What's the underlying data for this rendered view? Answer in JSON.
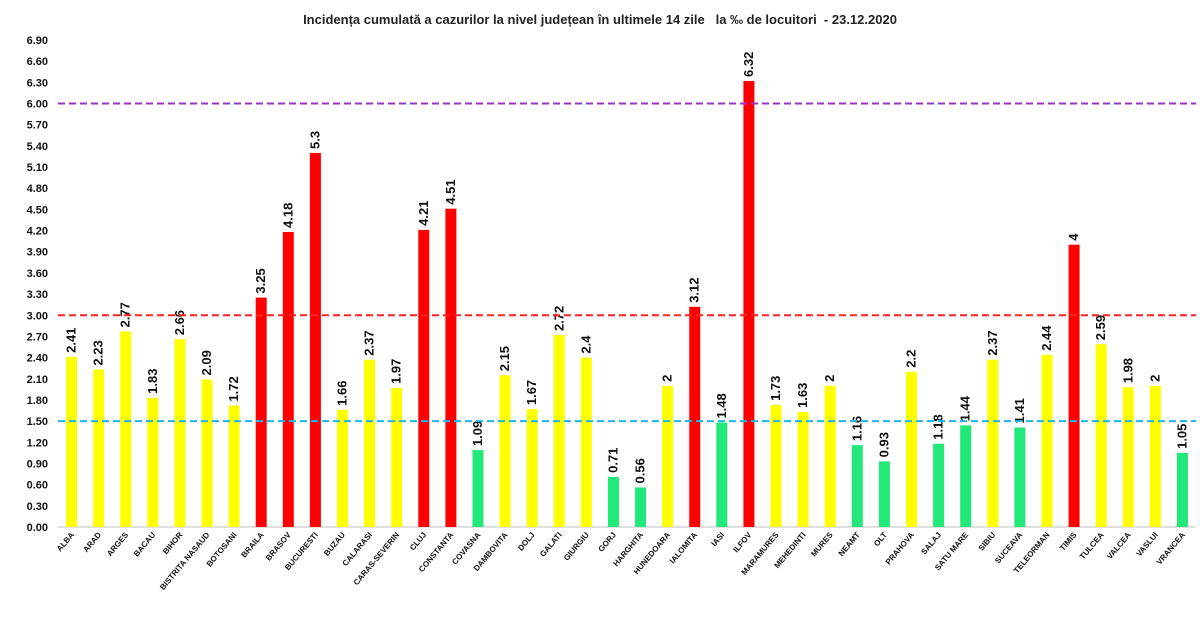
{
  "chart_data": {
    "type": "bar",
    "title": "Incidența cumulată a cazurilor la nivel județean în ultimele 14 zile   la ‰ de locuitori  - 23.12.2020",
    "categories": [
      "ALBA",
      "ARAD",
      "ARGES",
      "BACAU",
      "BIHOR",
      "BISTRITA NASAUD",
      "BOTOSANI",
      "BRAILA",
      "BRASOV",
      "BUCURESTI",
      "BUZAU",
      "CALARASI",
      "CARAS-SEVERIN",
      "CLUJ",
      "CONSTANTA",
      "COVASNA",
      "DAMBOVITA",
      "DOLJ",
      "GALATI",
      "GIURGIU",
      "GORJ",
      "HARGHITA",
      "HUNEDOARA",
      "IALOMITA",
      "IASI",
      "ILFOV",
      "MARAMURES",
      "MEHEDINTI",
      "MURES",
      "NEAMT",
      "OLT",
      "PRAHOVA",
      "SALAJ",
      "SATU MARE",
      "SIBIU",
      "SUCEAVA",
      "TELEORMAN",
      "TIMIS",
      "TULCEA",
      "VALCEA",
      "VASLUI",
      "VRANCEA"
    ],
    "values": [
      2.41,
      2.23,
      2.77,
      1.83,
      2.66,
      2.09,
      1.72,
      3.25,
      4.18,
      5.3,
      1.66,
      2.37,
      1.97,
      4.21,
      4.51,
      1.09,
      2.15,
      1.67,
      2.72,
      2.4,
      0.71,
      0.56,
      2,
      3.12,
      1.48,
      6.32,
      1.73,
      1.63,
      2,
      1.16,
      0.93,
      2.2,
      1.18,
      1.44,
      2.37,
      1.41,
      2.44,
      4,
      2.59,
      1.98,
      2,
      1.05
    ],
    "labels": [
      "2.41",
      "2.23",
      "2.77",
      "1.83",
      "2.66",
      "2.09",
      "1.72",
      "3.25",
      "4.18",
      "5.3",
      "1.66",
      "2.37",
      "1.97",
      "4.21",
      "4.51",
      "1.09",
      "2.15",
      "1.67",
      "2.72",
      "2.4",
      "0.71",
      "0.56",
      "2",
      "3.12",
      "1.48",
      "6.32",
      "1.73",
      "1.63",
      "2",
      "1.16",
      "0.93",
      "2.2",
      "1.18",
      "1.44",
      "2.37",
      "1.41",
      "2.44",
      "4",
      "2.59",
      "1.98",
      "2",
      "1.05"
    ],
    "ylim": [
      0,
      6.9
    ],
    "yticks": [
      "0.00",
      "0.30",
      "0.60",
      "0.90",
      "1.20",
      "1.50",
      "1.80",
      "2.10",
      "2.40",
      "2.70",
      "3.00",
      "3.30",
      "3.60",
      "3.90",
      "4.20",
      "4.50",
      "4.80",
      "5.10",
      "5.40",
      "5.70",
      "6.00",
      "6.30",
      "6.60",
      "6.90"
    ],
    "thresholds": [
      {
        "value": 1.5,
        "color": "#1ab7ea"
      },
      {
        "value": 3.0,
        "color": "#ff2020"
      },
      {
        "value": 6.0,
        "color": "#9933cc"
      }
    ],
    "colors": {
      "green": "#22e87a",
      "yellow": "#ffff00",
      "red": "#ff0000"
    },
    "grid": false,
    "legend": "none"
  }
}
